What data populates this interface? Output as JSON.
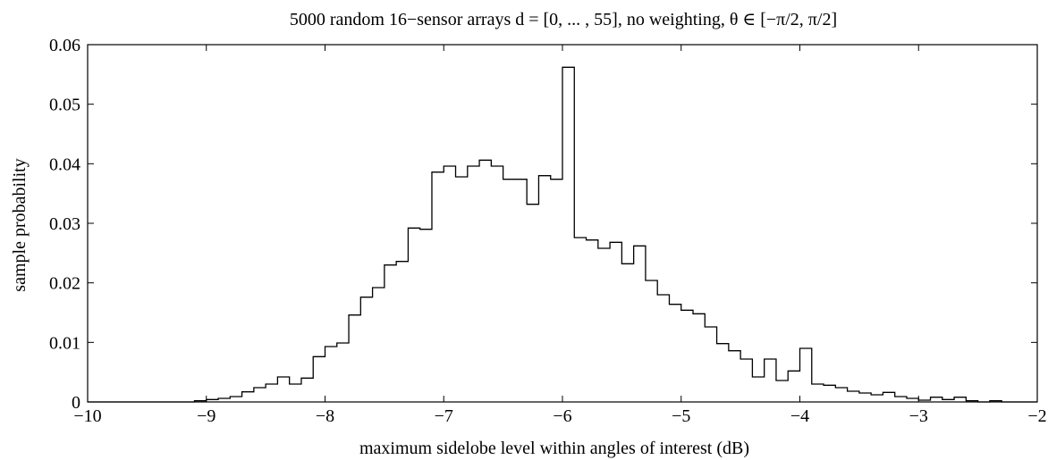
{
  "chart_data": {
    "type": "histogram",
    "title": "5000 random 16−sensor arrays  d = [0, ... , 55],   no weighting,   θ ∈ [−π/2, π/2]",
    "xlabel": "maximum sidelobe level within angles of interest   (dB)",
    "ylabel": "sample probability",
    "xlim": [
      -10,
      -2
    ],
    "ylim": [
      0,
      0.06
    ],
    "xticks": [
      -10,
      -9,
      -8,
      -7,
      -6,
      -5,
      -4,
      -3,
      -2
    ],
    "xtick_labels": [
      "−10",
      "−9",
      "−8",
      "−7",
      "−6",
      "−5",
      "−4",
      "−3",
      "−2"
    ],
    "yticks": [
      0,
      0.01,
      0.02,
      0.03,
      0.04,
      0.05,
      0.06
    ],
    "ytick_labels": [
      "0",
      "0.01",
      "0.02",
      "0.03",
      "0.04",
      "0.05",
      "0.06"
    ],
    "grid": false,
    "bin_edges": [
      -10.0,
      -9.1,
      -9.0,
      -8.9,
      -8.8,
      -8.7,
      -8.6,
      -8.5,
      -8.4,
      -8.3,
      -8.2,
      -8.1,
      -8.0,
      -7.9,
      -7.8,
      -7.7,
      -7.6,
      -7.5,
      -7.4,
      -7.3,
      -7.2,
      -7.1,
      -7.0,
      -6.9,
      -6.8,
      -6.7,
      -6.6,
      -6.5,
      -6.4,
      -6.3,
      -6.2,
      -6.1,
      -6.0,
      -5.9,
      -5.8,
      -5.7,
      -5.6,
      -5.5,
      -5.4,
      -5.3,
      -5.2,
      -5.1,
      -5.0,
      -4.9,
      -4.8,
      -4.7,
      -4.6,
      -4.5,
      -4.4,
      -4.3,
      -4.2,
      -4.1,
      -4.0,
      -3.9,
      -3.8,
      -3.7,
      -3.6,
      -3.5,
      -3.4,
      -3.3,
      -3.2,
      -3.1,
      -3.0,
      -2.9,
      -2.8,
      -2.7,
      -2.6,
      -2.5,
      -2.4,
      -2.3,
      -2.0
    ],
    "values": [
      0,
      0.0002,
      0.0004,
      0.0006,
      0.0009,
      0.0017,
      0.0024,
      0.003,
      0.0042,
      0.003,
      0.004,
      0.0076,
      0.0093,
      0.0099,
      0.0146,
      0.0176,
      0.0192,
      0.023,
      0.0236,
      0.0292,
      0.029,
      0.0386,
      0.0396,
      0.0378,
      0.0396,
      0.0406,
      0.0396,
      0.0374,
      0.0374,
      0.0332,
      0.038,
      0.0374,
      0.0562,
      0.0276,
      0.0272,
      0.0258,
      0.0268,
      0.0232,
      0.0262,
      0.0204,
      0.018,
      0.0164,
      0.0154,
      0.0148,
      0.0126,
      0.0098,
      0.0086,
      0.0072,
      0.0042,
      0.0072,
      0.0036,
      0.0052,
      0.009,
      0.003,
      0.0028,
      0.0024,
      0.0018,
      0.0015,
      0.0012,
      0.0016,
      0.0009,
      0.0006,
      0.0003,
      0.0008,
      0.0004,
      0.0008,
      0.0002,
      0.0,
      0.0002,
      0
    ]
  }
}
